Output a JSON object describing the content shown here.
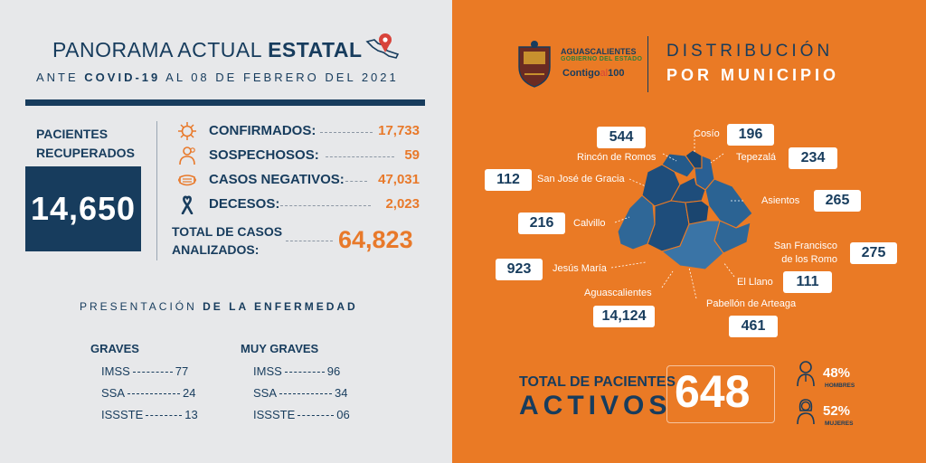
{
  "header": {
    "title_light": "PANORAMA ACTUAL",
    "title_bold": "ESTATAL",
    "sub_pre": "ANTE",
    "sub_bold": "COVID-19",
    "sub_post": "AL 08 DE FEBRERO DEL 2021"
  },
  "recovered": {
    "label_line1": "PACIENTES",
    "label_line2": "RECUPERADOS",
    "value": "14,650"
  },
  "stats": [
    {
      "icon": "virus-icon",
      "label": "CONFIRMADOS:",
      "value": "17,733"
    },
    {
      "icon": "suspect-person-icon",
      "label": "SOSPECHOSOS:",
      "value": "59"
    },
    {
      "icon": "face-mask-icon",
      "label": "CASOS NEGATIVOS:",
      "value": "47,031"
    },
    {
      "icon": "mourning-ribbon-icon",
      "label": "DECESOS:",
      "value": "2,023"
    }
  ],
  "total": {
    "label_line1": "TOTAL DE CASOS",
    "label_line2": "ANALIZADOS:",
    "value": "64,823"
  },
  "presentation": {
    "light": "PRESENTACIÓN",
    "bold": "DE LA ENFERMEDAD"
  },
  "graves": {
    "header": "GRAVES",
    "rows": [
      {
        "inst": "IMSS",
        "value": "77"
      },
      {
        "inst": "SSA",
        "value": "24"
      },
      {
        "inst": "ISSSTE",
        "value": "13"
      }
    ]
  },
  "muy_graves": {
    "header": "MUY GRAVES",
    "rows": [
      {
        "inst": "IMSS",
        "value": "96"
      },
      {
        "inst": "SSA",
        "value": "34"
      },
      {
        "inst": "ISSSTE",
        "value": "06"
      }
    ]
  },
  "branding": {
    "state": "AGUASCALIENTES",
    "government": "GOBIERNO DEL ESTADO",
    "slogan_a": "Contigo",
    "slogan_b": "al",
    "slogan_c": "100"
  },
  "distribution": {
    "title_line1": "DISTRIBUCIÓN",
    "title_line2": "POR MUNICIPIO"
  },
  "municipalities": [
    {
      "name": "Rincón de Romos",
      "value": "544"
    },
    {
      "name": "Cosío",
      "value": "196"
    },
    {
      "name": "Tepezalá",
      "value": "234"
    },
    {
      "name": "San José de Gracia",
      "value": "112"
    },
    {
      "name": "Asientos",
      "value": "265"
    },
    {
      "name": "Calvillo",
      "value": "216"
    },
    {
      "name": "San Francisco de los Romo",
      "name_line1": "San Francisco",
      "name_line2": "de los Romo",
      "value": "275"
    },
    {
      "name": "Jesús María",
      "value": "923"
    },
    {
      "name": "El Llano",
      "value": "111"
    },
    {
      "name": "Aguascalientes",
      "value": "14,124"
    },
    {
      "name": "Pabellón de Arteaga",
      "value": "461"
    }
  ],
  "active": {
    "label_line1": "TOTAL DE PACIENTES",
    "label_line2": "ACTIVOS",
    "value": "648"
  },
  "gender": {
    "men_pct": "48%",
    "men_label": "HOMBRES",
    "women_pct": "52%",
    "women_label": "MUJERES"
  },
  "colors": {
    "navy": "#173c5d",
    "orange": "#e8792a",
    "panel_orange": "#ea7a25",
    "panel_gray": "#e7e8ea",
    "map_dark": "#1e4d7b",
    "map_light": "#2f6797"
  }
}
